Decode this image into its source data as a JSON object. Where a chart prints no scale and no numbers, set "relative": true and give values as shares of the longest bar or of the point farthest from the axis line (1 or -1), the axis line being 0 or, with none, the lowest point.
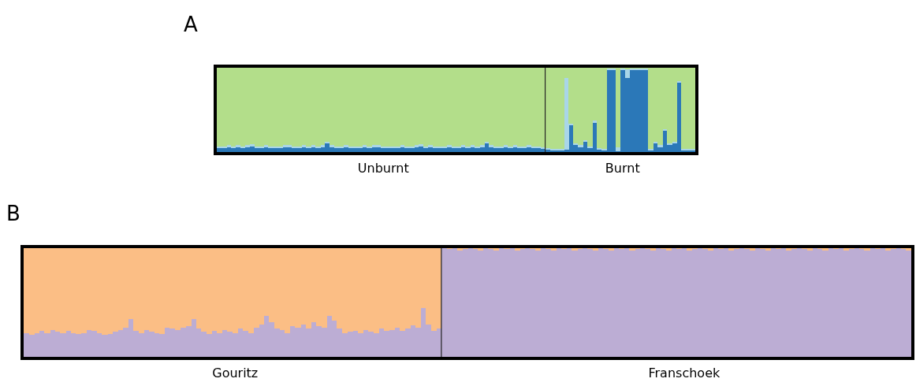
{
  "chart_data": [
    {
      "type": "bar",
      "title": "A",
      "stacked": true,
      "relative": true,
      "tick_labels": "x",
      "categories": [
        null,
        null,
        null,
        null,
        null,
        null,
        null,
        null,
        null,
        null,
        null,
        null,
        null,
        null,
        null,
        null,
        null,
        null,
        null,
        null,
        null,
        null,
        null,
        null,
        null,
        null,
        null,
        null,
        null,
        null,
        null,
        null,
        null,
        null,
        null,
        "Unburnt",
        null,
        null,
        null,
        null,
        null,
        null,
        null,
        null,
        null,
        null,
        null,
        null,
        null,
        null,
        null,
        null,
        null,
        null,
        null,
        null,
        null,
        null,
        null,
        null,
        null,
        null,
        null,
        null,
        null,
        null,
        null,
        null,
        null,
        null,
        null,
        null,
        null,
        null,
        null,
        null,
        null,
        null,
        null,
        null,
        null,
        null,
        null,
        null,
        null,
        null,
        "Burnt",
        null,
        null,
        null,
        null,
        null,
        null,
        null,
        null,
        null,
        null,
        null,
        null,
        null,
        null,
        null
      ],
      "series": [
        {
          "color": "#2b78b8",
          "values": [
            0.05,
            0.05,
            0.06,
            0.05,
            0.06,
            0.05,
            0.06,
            0.07,
            0.05,
            0.05,
            0.06,
            0.05,
            0.05,
            0.05,
            0.06,
            0.06,
            0.05,
            0.05,
            0.06,
            0.05,
            0.06,
            0.05,
            0.06,
            0.1,
            0.06,
            0.05,
            0.05,
            0.06,
            0.05,
            0.05,
            0.05,
            0.06,
            0.05,
            0.06,
            0.06,
            0.05,
            0.05,
            0.05,
            0.05,
            0.06,
            0.05,
            0.05,
            0.06,
            0.07,
            0.05,
            0.06,
            0.05,
            0.05,
            0.05,
            0.06,
            0.05,
            0.05,
            0.06,
            0.05,
            0.06,
            0.05,
            0.06,
            0.1,
            0.06,
            0.05,
            0.05,
            0.06,
            0.05,
            0.06,
            0.05,
            0.05,
            0.06,
            0.05,
            0.05,
            0.04,
            0.03,
            0.02,
            0.02,
            0.02,
            0.03,
            0.32,
            0.08,
            0.06,
            0.12,
            0.05,
            0.35,
            0.03,
            0.02,
            0.97,
            0.97,
            0.01,
            0.97,
            0.88,
            0.97,
            0.97,
            0.97,
            0.97,
            0.02,
            0.1,
            0.06,
            0.25,
            0.08,
            0.1,
            0.82,
            0.02,
            0.02,
            0.02
          ]
        },
        {
          "color": "#a9d6e8",
          "values": [
            0.02,
            0.02,
            0.02,
            0.02,
            0.02,
            0.02,
            0.02,
            0.02,
            0.02,
            0.02,
            0.02,
            0.02,
            0.02,
            0.02,
            0.02,
            0.02,
            0.02,
            0.02,
            0.02,
            0.02,
            0.02,
            0.02,
            0.02,
            0.02,
            0.02,
            0.02,
            0.02,
            0.02,
            0.02,
            0.02,
            0.02,
            0.02,
            0.02,
            0.02,
            0.02,
            0.02,
            0.02,
            0.02,
            0.02,
            0.02,
            0.02,
            0.02,
            0.02,
            0.02,
            0.02,
            0.02,
            0.02,
            0.02,
            0.02,
            0.02,
            0.02,
            0.02,
            0.02,
            0.02,
            0.02,
            0.02,
            0.02,
            0.02,
            0.02,
            0.02,
            0.02,
            0.02,
            0.02,
            0.02,
            0.02,
            0.02,
            0.02,
            0.02,
            0.02,
            0.02,
            0.02,
            0.02,
            0.02,
            0.02,
            0.85,
            0.02,
            0.02,
            0.02,
            0.02,
            0.02,
            0.02,
            0.02,
            0.02,
            0.02,
            0.02,
            0.05,
            0.02,
            0.1,
            0.02,
            0.02,
            0.02,
            0.02,
            0.02,
            0.02,
            0.02,
            0.02,
            0.02,
            0.02,
            0.02,
            0.02,
            0.02,
            0.02
          ]
        },
        {
          "color": "#b3de8a",
          "values": [
            0.93,
            0.93,
            0.92,
            0.93,
            0.92,
            0.93,
            0.92,
            0.91,
            0.93,
            0.93,
            0.92,
            0.93,
            0.93,
            0.93,
            0.92,
            0.92,
            0.93,
            0.93,
            0.92,
            0.93,
            0.92,
            0.93,
            0.92,
            0.88,
            0.92,
            0.93,
            0.93,
            0.92,
            0.93,
            0.93,
            0.93,
            0.92,
            0.93,
            0.92,
            0.92,
            0.93,
            0.93,
            0.93,
            0.93,
            0.92,
            0.93,
            0.93,
            0.92,
            0.91,
            0.93,
            0.92,
            0.93,
            0.93,
            0.93,
            0.92,
            0.93,
            0.93,
            0.92,
            0.93,
            0.92,
            0.93,
            0.92,
            0.88,
            0.92,
            0.93,
            0.93,
            0.92,
            0.93,
            0.92,
            0.93,
            0.93,
            0.92,
            0.93,
            0.93,
            0.94,
            0.95,
            0.96,
            0.96,
            0.96,
            0.12,
            0.66,
            0.9,
            0.92,
            0.86,
            0.93,
            0.63,
            0.95,
            0.96,
            0.01,
            0.01,
            0.94,
            0.01,
            0.02,
            0.01,
            0.01,
            0.01,
            0.01,
            0.96,
            0.88,
            0.92,
            0.73,
            0.9,
            0.88,
            0.16,
            0.96,
            0.96,
            0.96
          ]
        }
      ]
    },
    {
      "type": "bar",
      "title": "B",
      "stacked": true,
      "relative": true,
      "tick_labels": "x",
      "categories": [
        null,
        null,
        null,
        null,
        null,
        null,
        null,
        null,
        null,
        null,
        null,
        null,
        null,
        null,
        null,
        null,
        null,
        null,
        null,
        null,
        null,
        null,
        null,
        null,
        null,
        null,
        null,
        null,
        null,
        null,
        null,
        null,
        null,
        null,
        null,
        null,
        null,
        null,
        null,
        null,
        "Gouritz",
        null,
        null,
        null,
        null,
        null,
        null,
        null,
        null,
        null,
        null,
        null,
        null,
        null,
        null,
        null,
        null,
        null,
        null,
        null,
        null,
        null,
        null,
        null,
        null,
        null,
        null,
        null,
        null,
        null,
        null,
        null,
        null,
        null,
        null,
        null,
        null,
        null,
        null,
        null,
        null,
        null,
        null,
        null,
        null,
        null,
        null,
        null,
        null,
        null,
        null,
        null,
        null,
        null,
        null,
        null,
        null,
        null,
        null,
        null,
        null,
        null,
        null,
        null,
        null,
        null,
        null,
        null,
        null,
        null,
        null,
        null,
        null,
        null,
        null,
        null,
        null,
        null,
        null,
        null,
        null,
        null,
        null,
        null,
        null,
        null,
        "Franschoek",
        null,
        null,
        null,
        null,
        null,
        null,
        null,
        null,
        null,
        null,
        null,
        null,
        null,
        null,
        null,
        null,
        null,
        null,
        null,
        null,
        null,
        null,
        null,
        null,
        null,
        null,
        null,
        null,
        null,
        null,
        null,
        null,
        null,
        null,
        null,
        null,
        null,
        null,
        null,
        null,
        null,
        null,
        null
      ],
      "series": [
        {
          "color": "#bcadd4",
          "values": [
            0.22,
            0.2,
            0.22,
            0.24,
            0.22,
            0.25,
            0.23,
            0.22,
            0.24,
            0.22,
            0.21,
            0.22,
            0.25,
            0.24,
            0.22,
            0.2,
            0.21,
            0.23,
            0.25,
            0.27,
            0.35,
            0.24,
            0.22,
            0.25,
            0.23,
            0.22,
            0.21,
            0.27,
            0.26,
            0.25,
            0.27,
            0.28,
            0.35,
            0.26,
            0.23,
            0.21,
            0.24,
            0.22,
            0.25,
            0.23,
            0.22,
            0.26,
            0.24,
            0.22,
            0.27,
            0.3,
            0.38,
            0.32,
            0.26,
            0.25,
            0.22,
            0.28,
            0.27,
            0.3,
            0.26,
            0.32,
            0.28,
            0.27,
            0.38,
            0.33,
            0.26,
            0.22,
            0.23,
            0.24,
            0.22,
            0.25,
            0.23,
            0.22,
            0.26,
            0.24,
            0.25,
            0.27,
            0.24,
            0.26,
            0.29,
            0.27,
            0.45,
            0.3,
            0.24,
            0.26,
            1,
            0.99,
            1,
            0.98,
            0.99,
            1,
            0.99,
            0.98,
            1,
            0.99,
            0.98,
            1,
            0.99,
            1,
            0.98,
            0.99,
            1,
            0.99,
            0.98,
            1,
            0.99,
            0.98,
            1,
            0.99,
            1,
            0.98,
            0.99,
            1,
            0.99,
            0.98,
            1,
            0.99,
            0.98,
            1,
            0.99,
            1,
            0.98,
            0.99,
            1,
            0.99,
            0.98,
            1,
            0.99,
            0.98,
            1,
            0.99,
            1,
            0.98,
            0.99,
            1,
            0.99,
            0.98,
            1,
            0.99,
            1,
            0.98,
            0.99,
            1,
            0.99,
            0.98,
            1,
            0.99,
            0.98,
            1,
            0.99,
            1,
            0.98,
            0.99,
            1,
            0.99,
            0.98,
            1,
            0.99,
            0.98,
            1,
            0.99,
            1,
            0.98,
            0.99,
            1,
            0.99,
            0.98,
            1,
            0.99,
            1,
            0.98,
            0.99,
            1,
            0.99,
            0.98
          ]
        },
        {
          "color": "#fbbe85",
          "values": [
            0.78,
            0.8,
            0.78,
            0.76,
            0.78,
            0.75,
            0.77,
            0.78,
            0.76,
            0.78,
            0.79,
            0.78,
            0.75,
            0.76,
            0.78,
            0.8,
            0.79,
            0.77,
            0.75,
            0.73,
            0.65,
            0.76,
            0.78,
            0.75,
            0.77,
            0.78,
            0.79,
            0.73,
            0.74,
            0.75,
            0.73,
            0.72,
            0.65,
            0.74,
            0.77,
            0.79,
            0.76,
            0.78,
            0.75,
            0.77,
            0.78,
            0.74,
            0.76,
            0.78,
            0.73,
            0.7,
            0.62,
            0.68,
            0.74,
            0.75,
            0.78,
            0.72,
            0.73,
            0.7,
            0.74,
            0.68,
            0.72,
            0.73,
            0.62,
            0.67,
            0.74,
            0.78,
            0.77,
            0.76,
            0.78,
            0.75,
            0.77,
            0.78,
            0.74,
            0.76,
            0.75,
            0.73,
            0.76,
            0.74,
            0.71,
            0.73,
            0.55,
            0.7,
            0.76,
            0.74,
            0,
            0.01,
            0,
            0.02,
            0.01,
            0,
            0.01,
            0.02,
            0,
            0.01,
            0.02,
            0,
            0.01,
            0,
            0.02,
            0.01,
            0,
            0.01,
            0.02,
            0,
            0.01,
            0.02,
            0,
            0.01,
            0,
            0.02,
            0.01,
            0,
            0.01,
            0.02,
            0,
            0.01,
            0.02,
            0,
            0.01,
            0,
            0.02,
            0.01,
            0,
            0.01,
            0.02,
            0,
            0.01,
            0.02,
            0,
            0.01,
            0,
            0.02,
            0.01,
            0,
            0.01,
            0.02,
            0,
            0.01,
            0,
            0.02,
            0.01,
            0,
            0.01,
            0.02,
            0,
            0.01,
            0.02,
            0,
            0.01,
            0,
            0.02,
            0.01,
            0,
            0.01,
            0.02,
            0,
            0.01,
            0.02,
            0,
            0.01,
            0,
            0.02,
            0.01,
            0,
            0.01,
            0.02,
            0,
            0.01,
            0,
            0.02,
            0.01,
            0,
            0.01,
            0.02
          ]
        }
      ]
    }
  ]
}
